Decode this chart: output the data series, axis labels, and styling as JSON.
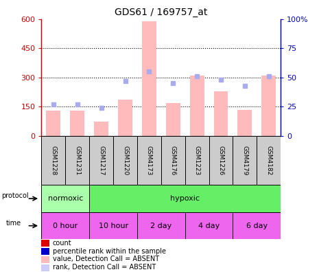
{
  "title": "GDS61 / 169757_at",
  "samples": [
    "GSM1228",
    "GSM1231",
    "GSM1217",
    "GSM1220",
    "GSM4173",
    "GSM4176",
    "GSM1223",
    "GSM1226",
    "GSM4179",
    "GSM4182"
  ],
  "bar_values": [
    130,
    130,
    75,
    185,
    590,
    170,
    310,
    230,
    135,
    310
  ],
  "rank_values": [
    27,
    27,
    24,
    47,
    55,
    45,
    51,
    48,
    43,
    51
  ],
  "bar_color": "#ffbbbb",
  "rank_color": "#aaaaee",
  "ylim_left": [
    0,
    600
  ],
  "ylim_right": [
    0,
    100
  ],
  "yticks_left": [
    0,
    150,
    300,
    450,
    600
  ],
  "ytick_labels_left": [
    "0",
    "150",
    "300",
    "450",
    "600"
  ],
  "yticks_right": [
    0,
    25,
    50,
    75,
    100
  ],
  "ytick_labels_right": [
    "0",
    "25",
    "50",
    "75",
    "100%"
  ],
  "protocol_labels": [
    "normoxic",
    "hypoxic"
  ],
  "protocol_n_samples": [
    2,
    8
  ],
  "protocol_colors": [
    "#aaffaa",
    "#66ee66"
  ],
  "time_labels": [
    "0 hour",
    "10 hour",
    "2 day",
    "4 day",
    "6 day"
  ],
  "time_n_samples": [
    2,
    2,
    2,
    2,
    2
  ],
  "time_color": "#ee66ee",
  "legend_items": [
    {
      "label": "count",
      "color": "#dd0000"
    },
    {
      "label": "percentile rank within the sample",
      "color": "#0000cc"
    },
    {
      "label": "value, Detection Call = ABSENT",
      "color": "#ffbbbb"
    },
    {
      "label": "rank, Detection Call = ABSENT",
      "color": "#ccccff"
    }
  ],
  "bg_color": "#ffffff",
  "sample_bg_color": "#cccccc",
  "left_axis_color": "#cc0000",
  "right_axis_color": "#0000cc",
  "title_fontsize": 10
}
